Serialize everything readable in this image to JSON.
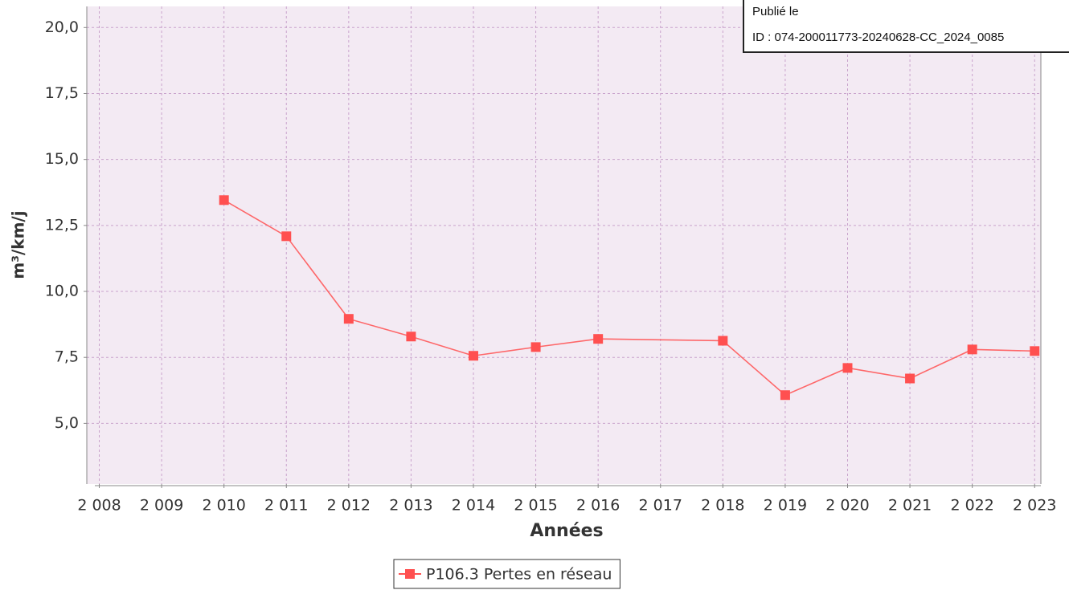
{
  "chart_data": {
    "type": "line",
    "y_label": "m³/km/j",
    "x_label": "Années",
    "x": [
      2010,
      2011,
      2012,
      2013,
      2014,
      2015,
      2016,
      2018,
      2019,
      2020,
      2021,
      2022,
      2023
    ],
    "series": [
      {
        "name": "P106.3 Pertes en réseau",
        "color": "#ff5050",
        "values": [
          13.46,
          12.09,
          8.96,
          8.29,
          7.56,
          7.89,
          8.2,
          8.13,
          6.07,
          7.1,
          6.7,
          7.8,
          7.74
        ]
      }
    ],
    "xlim": [
      2007.8,
      2023.1
    ],
    "xticks": [
      {
        "value": 2008,
        "label": "2 008"
      },
      {
        "value": 2009,
        "label": "2 009"
      },
      {
        "value": 2010,
        "label": "2 010"
      },
      {
        "value": 2011,
        "label": "2 011"
      },
      {
        "value": 2012,
        "label": "2 012"
      },
      {
        "value": 2013,
        "label": "2 013"
      },
      {
        "value": 2014,
        "label": "2 014"
      },
      {
        "value": 2015,
        "label": "2 015"
      },
      {
        "value": 2016,
        "label": "2 016"
      },
      {
        "value": 2017,
        "label": "2 017"
      },
      {
        "value": 2018,
        "label": "2 018"
      },
      {
        "value": 2019,
        "label": "2 019"
      },
      {
        "value": 2020,
        "label": "2 020"
      },
      {
        "value": 2021,
        "label": "2 021"
      },
      {
        "value": 2022,
        "label": "2 022"
      },
      {
        "value": 2023,
        "label": "2 023"
      }
    ],
    "ylim": [
      2.7,
      20.8
    ],
    "yticks": [
      {
        "value": 5,
        "label": "5,0"
      },
      {
        "value": 7.5,
        "label": "7,5"
      },
      {
        "value": 10,
        "label": "10,0"
      },
      {
        "value": 12.5,
        "label": "12,5"
      },
      {
        "value": 15,
        "label": "15,0"
      },
      {
        "value": 17.5,
        "label": "17,5"
      },
      {
        "value": 20,
        "label": "20,0"
      }
    ],
    "grid": true,
    "legend": "bottom",
    "background": "#f3eaf3",
    "grid_color": "#c9a3cc"
  },
  "stamp": {
    "line1": "Publié le",
    "line2": "ID : 074-200011773-20240628-CC_2024_0085"
  }
}
